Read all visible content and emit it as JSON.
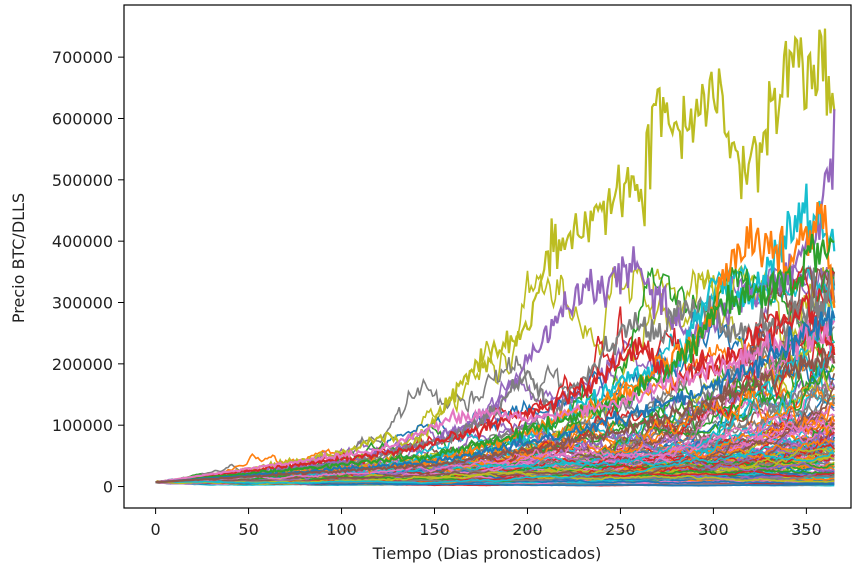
{
  "chart_data": {
    "type": "line",
    "title": "",
    "xlabel": "Tiempo (Dias pronosticados)",
    "ylabel": "Precio BTC/DLLS",
    "xlim": [
      -17,
      374
    ],
    "ylim": [
      -35000,
      785000
    ],
    "x_ticks": [
      0,
      50,
      100,
      150,
      200,
      250,
      300,
      350
    ],
    "y_ticks": [
      0,
      100000,
      200000,
      300000,
      400000,
      500000,
      600000,
      700000
    ],
    "x_tick_labels": [
      "0",
      "50",
      "100",
      "150",
      "200",
      "250",
      "300",
      "350"
    ],
    "y_tick_labels": [
      "0",
      "100000",
      "200000",
      "300000",
      "400000",
      "500000",
      "600000",
      "700000"
    ],
    "grid": false,
    "legend": "none",
    "x_range": [
      0,
      365
    ],
    "start_value": 7000,
    "colors": [
      "#1f77b4",
      "#ff7f0e",
      "#2ca02c",
      "#d62728",
      "#9467bd",
      "#8c564b",
      "#e377c2",
      "#7f7f7f",
      "#bcbd22",
      "#17becf"
    ],
    "series": [
      {
        "color": "#bcbd22",
        "x": [
          0,
          50,
          100,
          125,
          135,
          150,
          170,
          200,
          210,
          230,
          250,
          262,
          270,
          285,
          300,
          315,
          330,
          345,
          350,
          360,
          365
        ],
        "values": [
          7000,
          28000,
          55000,
          88000,
          62000,
          105000,
          190000,
          255000,
          380000,
          400000,
          500000,
          470000,
          640000,
          560000,
          650000,
          500000,
          580000,
          740000,
          680000,
          700000,
          590000
        ]
      },
      {
        "color": "#9467bd",
        "x": [
          0,
          100,
          150,
          180,
          200,
          220,
          240,
          255,
          270,
          290,
          310,
          330,
          345,
          355,
          365
        ],
        "values": [
          7000,
          40000,
          75000,
          120000,
          200000,
          290000,
          330000,
          360000,
          300000,
          250000,
          300000,
          330000,
          360000,
          420000,
          560000
        ]
      },
      {
        "color": "#7f7f7f",
        "x": [
          0,
          100,
          160,
          185,
          200,
          215,
          240,
          255,
          270,
          290,
          310,
          340,
          365
        ],
        "values": [
          7000,
          35000,
          80000,
          130000,
          185000,
          120000,
          220000,
          265000,
          250000,
          300000,
          250000,
          270000,
          320000
        ]
      },
      {
        "color": "#17becf",
        "x": [
          0,
          120,
          200,
          250,
          280,
          300,
          320,
          340,
          350,
          365
        ],
        "values": [
          7000,
          30000,
          80000,
          170000,
          200000,
          340000,
          300000,
          420000,
          450000,
          400000
        ]
      },
      {
        "color": "#ff7f0e",
        "x": [
          0,
          150,
          200,
          250,
          290,
          315,
          340,
          360,
          365
        ],
        "values": [
          7000,
          40000,
          90000,
          150000,
          230000,
          400000,
          380000,
          440000,
          300000
        ]
      },
      {
        "color": "#d62728",
        "x": [
          0,
          140,
          200,
          230,
          260,
          280,
          300,
          330,
          350,
          365
        ],
        "values": [
          7000,
          60000,
          120000,
          160000,
          230000,
          170000,
          200000,
          250000,
          300000,
          220000
        ]
      },
      {
        "color": "#2ca02c",
        "x": [
          0,
          150,
          200,
          250,
          280,
          300,
          330,
          350,
          365
        ],
        "values": [
          7000,
          50000,
          90000,
          140000,
          200000,
          280000,
          320000,
          360000,
          400000
        ]
      },
      {
        "color": "#e377c2",
        "x": [
          0,
          120,
          160,
          180,
          200,
          240,
          280,
          320,
          365
        ],
        "values": [
          7000,
          60000,
          110000,
          120000,
          110000,
          130000,
          170000,
          210000,
          260000
        ]
      },
      {
        "color": "#1f77b4",
        "x": [
          0,
          150,
          200,
          250,
          300,
          340,
          365
        ],
        "values": [
          7000,
          40000,
          70000,
          110000,
          160000,
          230000,
          280000
        ]
      },
      {
        "color": "#8c564b",
        "x": [
          0,
          150,
          200,
          250,
          300,
          340,
          365
        ],
        "values": [
          7000,
          35000,
          60000,
          90000,
          140000,
          190000,
          210000
        ]
      }
    ]
  }
}
